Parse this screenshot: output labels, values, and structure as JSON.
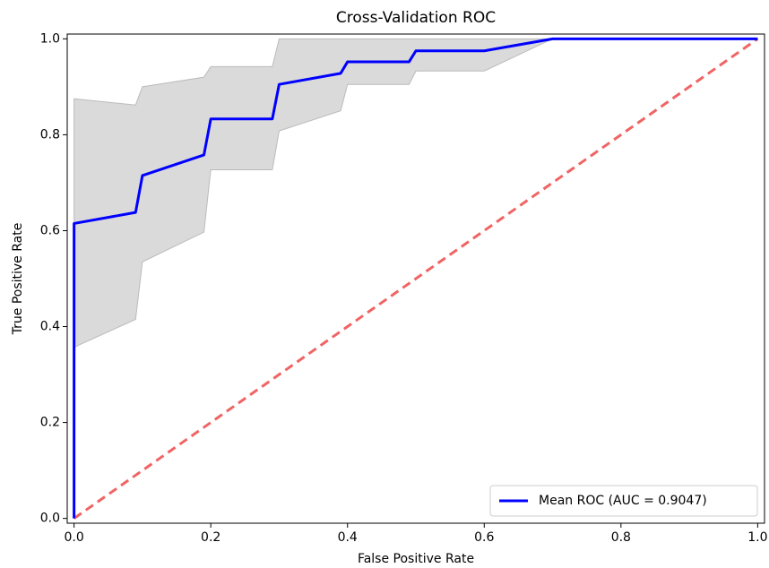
{
  "chart_data": {
    "type": "line",
    "title": "Cross-Validation ROC",
    "x_label": "False Positive Rate",
    "y_label": "True Positive Rate",
    "xlim": [
      -0.01,
      1.01
    ],
    "ylim": [
      -0.01,
      1.01
    ],
    "xticks": [
      {
        "value": 0,
        "label": "0.0"
      },
      0.2,
      0.4,
      0.6,
      0.8,
      {
        "value": 1,
        "label": "1.0"
      }
    ],
    "yticks": [
      {
        "value": 0,
        "label": "0.0"
      },
      0.2,
      0.4,
      0.6,
      0.8,
      {
        "value": 1,
        "label": "1.0"
      }
    ],
    "legend": "lower right",
    "band": {
      "color": "#d3d3d3",
      "x": [
        0,
        0.09,
        0.1,
        0.19,
        0.2,
        0.29,
        0.3,
        0.39,
        0.4,
        0.49,
        0.5,
        0.6,
        0.7,
        1.0
      ],
      "upper": [
        0.875,
        0.862,
        0.9,
        0.92,
        0.942,
        0.942,
        1,
        1,
        1,
        1,
        1,
        1,
        1,
        1
      ],
      "lower": [
        0.357,
        0.415,
        0.535,
        0.597,
        0.727,
        0.727,
        0.808,
        0.85,
        0.905,
        0.905,
        0.933,
        0.933,
        1,
        1
      ]
    },
    "diagonal": {
      "color": "#f06464",
      "dashed": true,
      "x": [
        0,
        1
      ],
      "values": [
        0,
        1
      ]
    },
    "series": [
      {
        "name": "Mean ROC (AUC = 0.9047)",
        "color": "#0000ff",
        "x": [
          0,
          0,
          0.09,
          0.1,
          0.19,
          0.2,
          0.29,
          0.3,
          0.39,
          0.4,
          0.49,
          0.5,
          0.6,
          0.7,
          1.0
        ],
        "values": [
          0,
          0.615,
          0.638,
          0.715,
          0.758,
          0.833,
          0.833,
          0.905,
          0.928,
          0.952,
          0.952,
          0.975,
          0.975,
          1.0,
          1.0
        ]
      }
    ]
  }
}
